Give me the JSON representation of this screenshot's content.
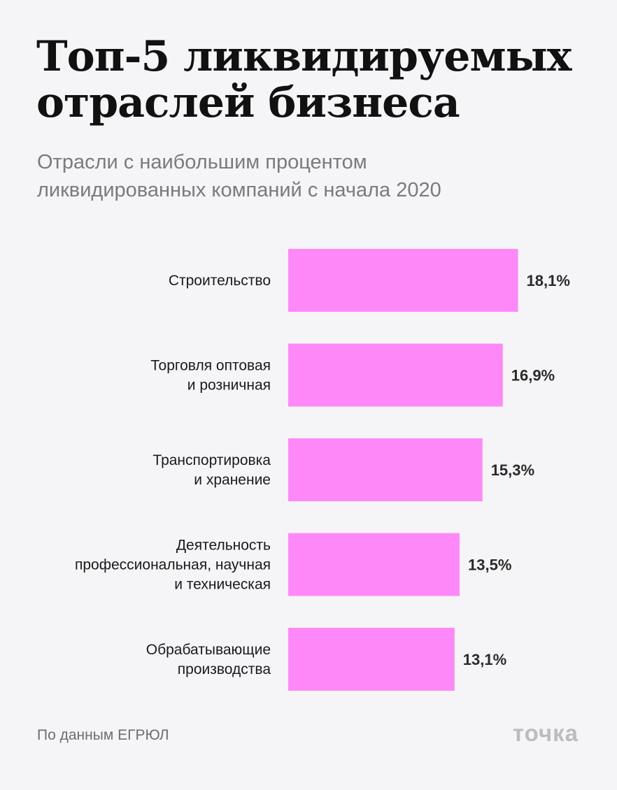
{
  "header": {
    "title_line1": "Топ-5 ликвидируемых",
    "title_line2": "отраслей бизнеса",
    "subtitle_line1": "Отрасли с наибольшим процентом",
    "subtitle_line2": "ликвидированных компаний с начала 2020"
  },
  "footer": {
    "source": "По данным ЕГРЮЛ",
    "brand": "точка"
  },
  "colors": {
    "bar": "#ff88f9",
    "background": "#f5f5f7"
  },
  "chart_data": {
    "type": "bar",
    "orientation": "horizontal",
    "categories": [
      [
        "Строительство"
      ],
      [
        "Торговля оптовая",
        "и розничная"
      ],
      [
        "Транспортировка",
        "и хранение"
      ],
      [
        "Деятельность",
        "профессиональная, научная",
        "и техническая"
      ],
      [
        "Обрабатывающие",
        "производства"
      ]
    ],
    "values": [
      18.1,
      16.9,
      15.3,
      13.5,
      13.1
    ],
    "value_labels": [
      "18,1%",
      "16,9%",
      "15,3%",
      "13,5%",
      "13,1%"
    ],
    "unit": "%",
    "title": "Топ-5 ликвидируемых отраслей бизнеса",
    "xlabel": "",
    "ylabel": ""
  }
}
